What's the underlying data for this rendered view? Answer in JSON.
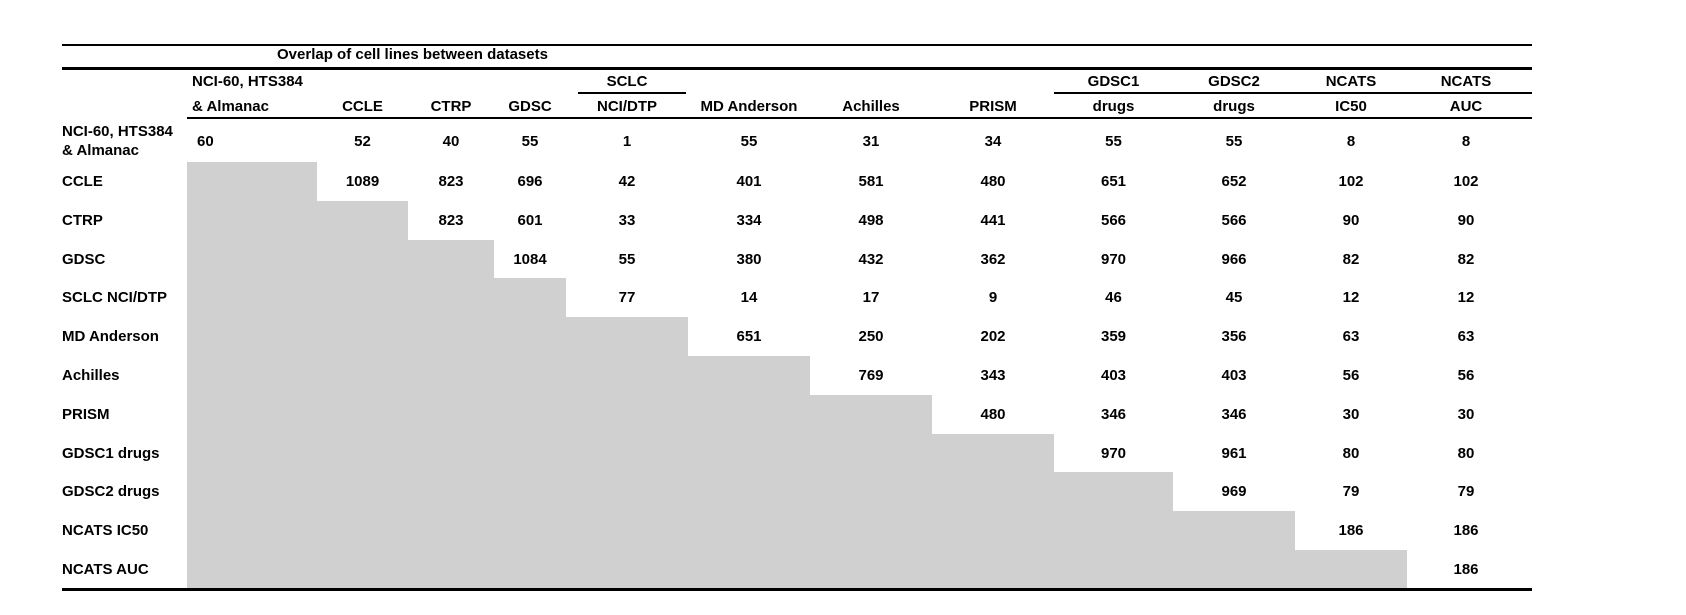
{
  "title": "Overlap of cell lines between datasets",
  "colors": {
    "shade": "#d0d0d0",
    "rule": "#000000",
    "text": "#000000",
    "background": "#ffffff"
  },
  "table": {
    "columns": [
      {
        "line1": "NCI-60, HTS384",
        "line2": "& Almanac"
      },
      {
        "line1": "",
        "line2": "CCLE"
      },
      {
        "line1": "",
        "line2": "CTRP"
      },
      {
        "line1": "",
        "line2": "GDSC"
      },
      {
        "line1": "SCLC",
        "line2": "NCI/DTP"
      },
      {
        "line1": "",
        "line2": "MD Anderson"
      },
      {
        "line1": "",
        "line2": "Achilles"
      },
      {
        "line1": "",
        "line2": "PRISM"
      },
      {
        "line1": "GDSC1",
        "line2": "drugs"
      },
      {
        "line1": "GDSC2",
        "line2": "drugs"
      },
      {
        "line1": "NCATS",
        "line2": "IC50"
      },
      {
        "line1": "NCATS",
        "line2": "AUC"
      }
    ],
    "header_underlines": [
      {
        "start": 4,
        "end": 4
      },
      {
        "start": 8,
        "end": 11
      }
    ],
    "rows": [
      {
        "label_lines": [
          "NCI-60, HTS384",
          "& Almanac"
        ],
        "values": [
          60,
          52,
          40,
          55,
          1,
          55,
          31,
          34,
          55,
          55,
          8,
          8
        ]
      },
      {
        "label_lines": [
          "CCLE"
        ],
        "values": [
          null,
          1089,
          823,
          696,
          42,
          401,
          581,
          480,
          651,
          652,
          102,
          102
        ]
      },
      {
        "label_lines": [
          "CTRP"
        ],
        "values": [
          null,
          null,
          823,
          601,
          33,
          334,
          498,
          441,
          566,
          566,
          90,
          90
        ]
      },
      {
        "label_lines": [
          "GDSC"
        ],
        "values": [
          null,
          null,
          null,
          1084,
          55,
          380,
          432,
          362,
          970,
          966,
          82,
          82
        ]
      },
      {
        "label_lines": [
          "SCLC NCI/DTP"
        ],
        "values": [
          null,
          null,
          null,
          null,
          77,
          14,
          17,
          9,
          46,
          45,
          12,
          12
        ]
      },
      {
        "label_lines": [
          "MD Anderson"
        ],
        "values": [
          null,
          null,
          null,
          null,
          null,
          651,
          250,
          202,
          359,
          356,
          63,
          63
        ]
      },
      {
        "label_lines": [
          "Achilles"
        ],
        "values": [
          null,
          null,
          null,
          null,
          null,
          null,
          769,
          343,
          403,
          403,
          56,
          56
        ]
      },
      {
        "label_lines": [
          "PRISM"
        ],
        "values": [
          null,
          null,
          null,
          null,
          null,
          null,
          null,
          480,
          346,
          346,
          30,
          30
        ]
      },
      {
        "label_lines": [
          "GDSC1 drugs"
        ],
        "values": [
          null,
          null,
          null,
          null,
          null,
          null,
          null,
          null,
          970,
          961,
          80,
          80
        ]
      },
      {
        "label_lines": [
          "GDSC2 drugs"
        ],
        "values": [
          null,
          null,
          null,
          null,
          null,
          null,
          null,
          null,
          null,
          969,
          79,
          79
        ]
      },
      {
        "label_lines": [
          "NCATS IC50"
        ],
        "values": [
          null,
          null,
          null,
          null,
          null,
          null,
          null,
          null,
          null,
          null,
          186,
          186
        ]
      },
      {
        "label_lines": [
          "NCATS AUC"
        ],
        "values": [
          null,
          null,
          null,
          null,
          null,
          null,
          null,
          null,
          null,
          null,
          null,
          186
        ]
      }
    ]
  }
}
